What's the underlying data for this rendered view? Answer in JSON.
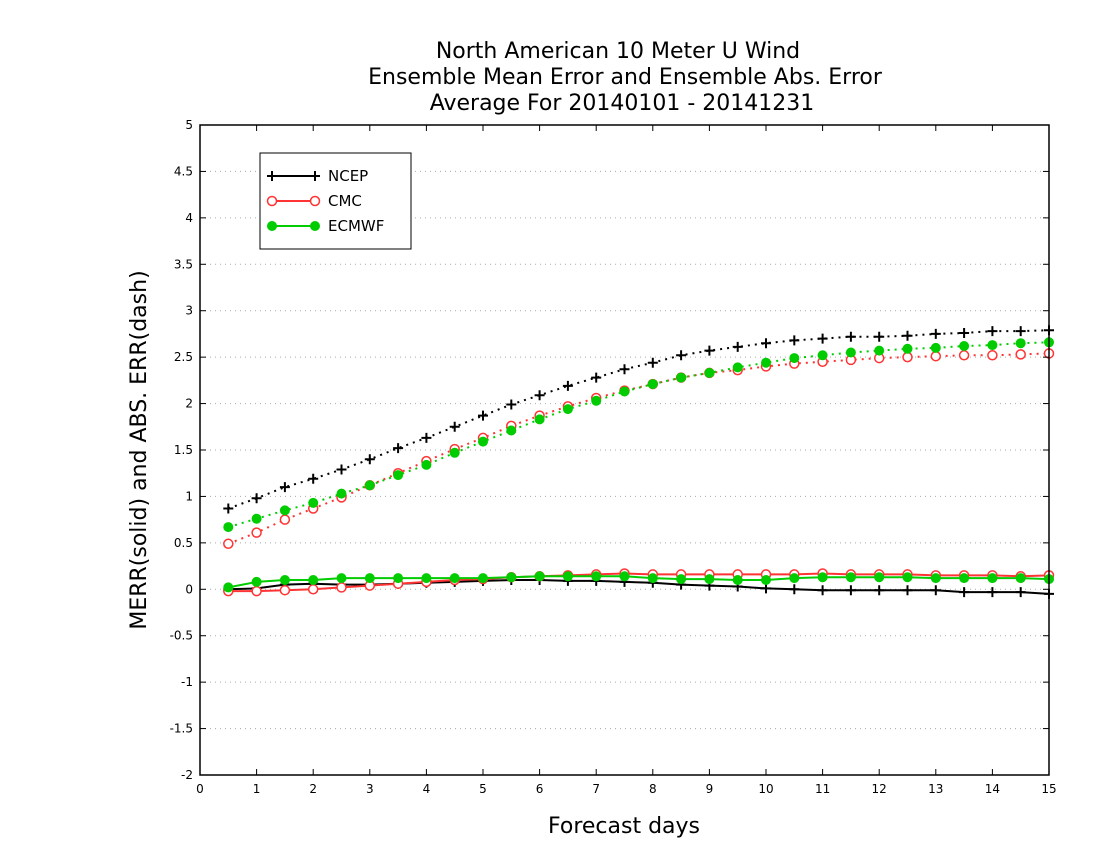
{
  "chart_data": {
    "type": "line",
    "title_lines": [
      "North American 10 Meter U Wind",
      "Ensemble Mean Error and Ensemble Abs. Error",
      "Average For 20140101 - 20141231"
    ],
    "xlabel": "Forecast days",
    "ylabel": "MERR(solid) and ABS. ERR(dash)",
    "xlim": [
      0,
      15
    ],
    "ylim": [
      -2,
      5
    ],
    "x_ticks": [
      0,
      1,
      2,
      3,
      4,
      5,
      6,
      7,
      8,
      9,
      10,
      11,
      12,
      13,
      14,
      15
    ],
    "x_tick_labels": [
      "0",
      "1",
      "2",
      "3",
      "4",
      "5",
      "6",
      "7",
      "8",
      "9",
      "10",
      "11",
      "12",
      "13",
      "14",
      "15"
    ],
    "y_ticks": [
      -2,
      -1.5,
      -1,
      -0.5,
      0,
      0.5,
      1,
      1.5,
      2,
      2.5,
      3,
      3.5,
      4,
      4.5,
      5
    ],
    "y_tick_labels": [
      "-2",
      "-1.5",
      "-1",
      "-0.5",
      "0",
      "0.5",
      "1",
      "1.5",
      "2",
      "2.5",
      "3",
      "3.5",
      "4",
      "4.5",
      "5"
    ],
    "grid": "horizontal dotted",
    "legend_position": "top-left",
    "x": [
      0.5,
      1,
      1.5,
      2,
      2.5,
      3,
      3.5,
      4,
      4.5,
      5,
      5.5,
      6,
      6.5,
      7,
      7.5,
      8,
      8.5,
      9,
      9.5,
      10,
      10.5,
      11,
      11.5,
      12,
      12.5,
      13,
      13.5,
      14,
      14.5,
      15
    ],
    "series": [
      {
        "name": "NCEP",
        "color": "#000000",
        "marker": "plus",
        "merr": [
          0.0,
          0.01,
          0.05,
          0.06,
          0.05,
          0.05,
          0.06,
          0.07,
          0.08,
          0.09,
          0.1,
          0.1,
          0.09,
          0.09,
          0.08,
          0.07,
          0.05,
          0.04,
          0.03,
          0.01,
          0.0,
          -0.01,
          -0.01,
          -0.01,
          -0.01,
          -0.01,
          -0.03,
          -0.03,
          -0.03,
          -0.05
        ],
        "abs_err": [
          0.87,
          0.98,
          1.1,
          1.19,
          1.29,
          1.4,
          1.52,
          1.63,
          1.75,
          1.87,
          1.99,
          2.09,
          2.19,
          2.28,
          2.37,
          2.44,
          2.52,
          2.57,
          2.61,
          2.65,
          2.68,
          2.7,
          2.72,
          2.72,
          2.73,
          2.75,
          2.76,
          2.78,
          2.78,
          2.79
        ]
      },
      {
        "name": "CMC",
        "color": "#ff3333",
        "marker": "open-circle",
        "merr": [
          -0.02,
          -0.02,
          -0.01,
          0.0,
          0.02,
          0.04,
          0.06,
          0.08,
          0.1,
          0.11,
          0.13,
          0.14,
          0.15,
          0.16,
          0.17,
          0.16,
          0.16,
          0.16,
          0.16,
          0.16,
          0.16,
          0.17,
          0.16,
          0.16,
          0.16,
          0.15,
          0.15,
          0.15,
          0.14,
          0.15
        ],
        "abs_err": [
          0.49,
          0.61,
          0.75,
          0.87,
          0.99,
          1.12,
          1.25,
          1.38,
          1.51,
          1.63,
          1.76,
          1.87,
          1.97,
          2.06,
          2.14,
          2.21,
          2.28,
          2.33,
          2.36,
          2.4,
          2.43,
          2.45,
          2.47,
          2.49,
          2.5,
          2.51,
          2.52,
          2.52,
          2.53,
          2.54
        ]
      },
      {
        "name": "ECMWF",
        "color": "#00cc00",
        "marker": "filled-circle",
        "merr": [
          0.02,
          0.08,
          0.1,
          0.1,
          0.12,
          0.12,
          0.12,
          0.12,
          0.12,
          0.12,
          0.13,
          0.14,
          0.14,
          0.14,
          0.14,
          0.12,
          0.11,
          0.11,
          0.1,
          0.1,
          0.12,
          0.13,
          0.13,
          0.13,
          0.13,
          0.12,
          0.12,
          0.12,
          0.12,
          0.11
        ],
        "abs_err": [
          0.67,
          0.76,
          0.85,
          0.93,
          1.03,
          1.12,
          1.23,
          1.34,
          1.47,
          1.59,
          1.71,
          1.83,
          1.94,
          2.03,
          2.13,
          2.21,
          2.28,
          2.33,
          2.39,
          2.44,
          2.49,
          2.52,
          2.55,
          2.57,
          2.59,
          2.6,
          2.62,
          2.63,
          2.65,
          2.66
        ]
      }
    ]
  }
}
